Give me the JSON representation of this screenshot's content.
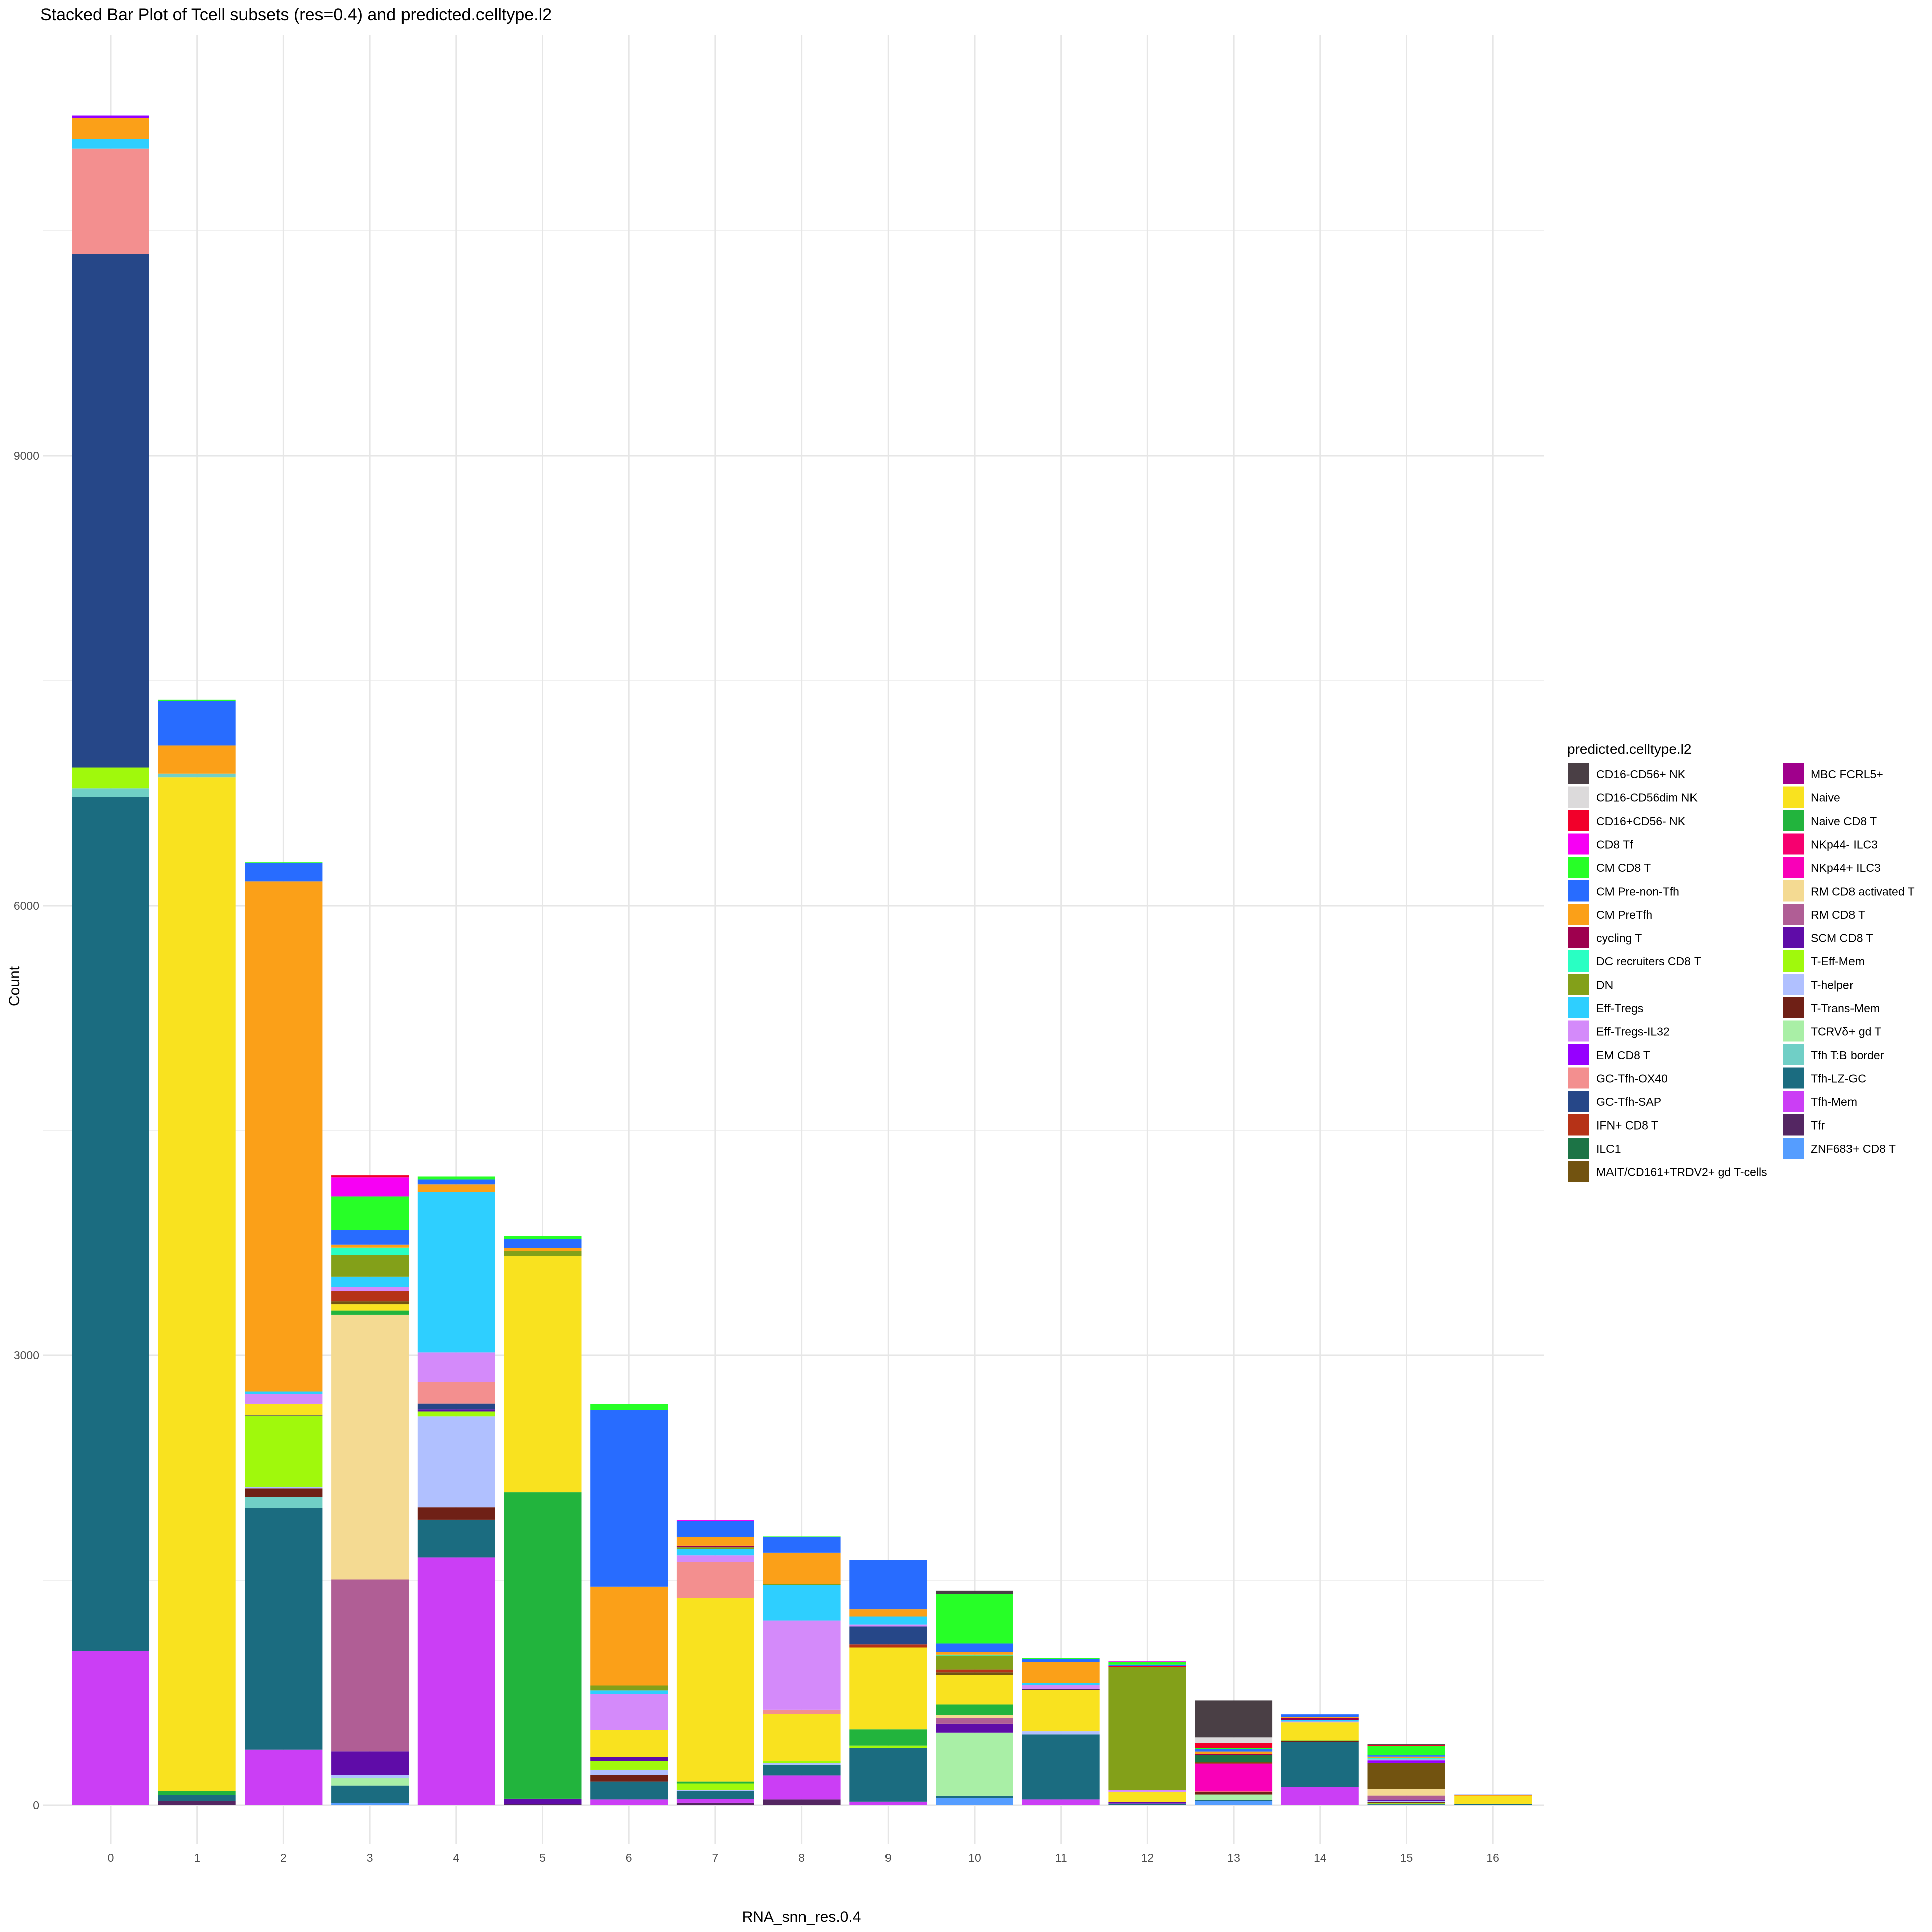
{
  "chart_data": {
    "type": "bar",
    "stacked": true,
    "title": "Stacked Bar Plot of Tcell subsets (res=0.4) and predicted.celltype.l2",
    "xlabel": "RNA_snn_res.0.4",
    "ylabel": "Count",
    "ylim": [
      -450,
      12000
    ],
    "yticks": [
      0,
      3000,
      6000,
      9000
    ],
    "grid": true,
    "legend_position": "right",
    "legend_title": "predicted.celltype.l2",
    "categories": [
      "0",
      "1",
      "2",
      "3",
      "4",
      "5",
      "6",
      "7",
      "8",
      "9",
      "10",
      "11",
      "12",
      "13",
      "14",
      "15",
      "16"
    ],
    "celltypes": [
      {
        "name": "CD16-CD56+ NK",
        "color": "#4A3F45"
      },
      {
        "name": "CD16-CD56dim NK",
        "color": "#DCDADB"
      },
      {
        "name": "CD16+CD56- NK",
        "color": "#F2002A"
      },
      {
        "name": "CD8 Tf",
        "color": "#F700F4"
      },
      {
        "name": "CM CD8 T",
        "color": "#27FF27"
      },
      {
        "name": "CM Pre-non-Tfh",
        "color": "#286CFF"
      },
      {
        "name": "CM PreTfh",
        "color": "#FBA018"
      },
      {
        "name": "cycling T",
        "color": "#9E004E"
      },
      {
        "name": "DC recruiters CD8 T",
        "color": "#29FFC3"
      },
      {
        "name": "DN",
        "color": "#83A019"
      },
      {
        "name": "Eff-Tregs",
        "color": "#2ECFFF"
      },
      {
        "name": "Eff-Tregs-IL32",
        "color": "#D48AFA"
      },
      {
        "name": "EM CD8 T",
        "color": "#9600FF"
      },
      {
        "name": "GC-Tfh-OX40",
        "color": "#F38F8F"
      },
      {
        "name": "GC-Tfh-SAP",
        "color": "#264788"
      },
      {
        "name": "IFN+ CD8 T",
        "color": "#B63217"
      },
      {
        "name": "ILC1",
        "color": "#1C7446"
      },
      {
        "name": "MAIT/CD161+TRDV2+ gd T-cells",
        "color": "#725310"
      },
      {
        "name": "MBC FCRL5+",
        "color": "#A0008C"
      },
      {
        "name": "Naive",
        "color": "#F9E21F"
      },
      {
        "name": "Naive CD8 T",
        "color": "#22B43D"
      },
      {
        "name": "NKp44- ILC3",
        "color": "#F6006F"
      },
      {
        "name": "NKp44+ ILC3",
        "color": "#F900B8"
      },
      {
        "name": "RM CD8 activated T",
        "color": "#F4DA92"
      },
      {
        "name": "RM CD8 T",
        "color": "#B05E95"
      },
      {
        "name": "SCM CD8 T",
        "color": "#5F0CA8"
      },
      {
        "name": "T-Eff-Mem",
        "color": "#A0F90C"
      },
      {
        "name": "T-helper",
        "color": "#B0C0FF"
      },
      {
        "name": "T-Trans-Mem",
        "color": "#6F2016"
      },
      {
        "name": "TCRVδ+ gd T",
        "color": "#A9EFA6"
      },
      {
        "name": "Tfh T:B border",
        "color": "#70CFC6"
      },
      {
        "name": "Tfh-LZ-GC",
        "color": "#1B6C80"
      },
      {
        "name": "Tfh-Mem",
        "color": "#CB3EF5"
      },
      {
        "name": "Tfr",
        "color": "#542662"
      },
      {
        "name": "ZNF683+ CD8 T",
        "color": "#559DFF"
      }
    ],
    "stacks_bottom_to_top": [
      [
        [
          "Tfh-Mem",
          1027
        ],
        [
          "Tfh-LZ-GC",
          5697
        ],
        [
          "Tfh T:B border",
          57
        ],
        [
          "T-Eff-Mem",
          140
        ],
        [
          "GC-Tfh-SAP",
          3428
        ],
        [
          "GC-Tfh-OX40",
          699
        ],
        [
          "Eff-Tregs",
          65
        ],
        [
          "CM PreTfh",
          140
        ],
        [
          "EM CD8 T",
          17
        ]
      ],
      [
        [
          "Tfr",
          30
        ],
        [
          "Tfh-LZ-GC",
          40
        ],
        [
          "Naive CD8 T",
          25
        ],
        [
          "Naive",
          6760
        ],
        [
          "Tfh T:B border",
          25
        ],
        [
          "CM PreTfh",
          189
        ],
        [
          "CM Pre-non-Tfh",
          296
        ],
        [
          "CM CD8 T",
          8
        ]
      ],
      [
        [
          "Tfh-Mem",
          370
        ],
        [
          "Tfh-LZ-GC",
          1611
        ],
        [
          "Tfh T:B border",
          74
        ],
        [
          "T-Trans-Mem",
          58
        ],
        [
          "T-helper",
          10
        ],
        [
          "T-Eff-Mem",
          476
        ],
        [
          "SCM CD8 T",
          5
        ],
        [
          "Naive",
          74
        ],
        [
          "Eff-Tregs-IL32",
          66
        ],
        [
          "Eff-Tregs",
          16
        ],
        [
          "CM PreTfh",
          3400
        ],
        [
          "CM Pre-non-Tfh",
          123
        ],
        [
          "CM CD8 T",
          5
        ]
      ],
      [
        [
          "ZNF683+ CD8 T",
          15
        ],
        [
          "Tfh-LZ-GC",
          117
        ],
        [
          "TCRVδ+ gd T",
          50
        ],
        [
          "T-helper",
          20
        ],
        [
          "SCM CD8 T",
          156
        ],
        [
          "RM CD8 T",
          1147
        ],
        [
          "RM CD8 activated T",
          1767
        ],
        [
          "Naive CD8 T",
          28
        ],
        [
          "Naive",
          42
        ],
        [
          "MAIT/CD161+TRDV2+ gd T-cells",
          20
        ],
        [
          "IFN+ CD8 T",
          70
        ],
        [
          "Eff-Tregs-IL32",
          22
        ],
        [
          "Eff-Tregs",
          70
        ],
        [
          "DN",
          145
        ],
        [
          "DC recruiters CD8 T",
          50
        ],
        [
          "CM PreTfh",
          20
        ],
        [
          "CM Pre-non-Tfh",
          97
        ],
        [
          "CM CD8 T",
          223
        ],
        [
          "CD8 Tf",
          128
        ],
        [
          "CD16+CD56- NK",
          14
        ]
      ],
      [
        [
          "Tfh-Mem",
          1653
        ],
        [
          "Tfh-LZ-GC",
          250
        ],
        [
          "T-Trans-Mem",
          83
        ],
        [
          "T-helper",
          607
        ],
        [
          "T-Eff-Mem",
          33
        ],
        [
          "SCM CD8 T",
          14
        ],
        [
          "GC-Tfh-SAP",
          39
        ],
        [
          "GC-Tfh-OX40",
          145
        ],
        [
          "Eff-Tregs-IL32",
          195
        ],
        [
          "Eff-Tregs",
          1071
        ],
        [
          "CM PreTfh",
          50
        ],
        [
          "CM Pre-non-Tfh",
          33
        ],
        [
          "CM CD8 T",
          20
        ]
      ],
      [
        [
          "Tfr",
          8
        ],
        [
          "SCM CD8 T",
          36
        ],
        [
          "Naive CD8 T",
          2043
        ],
        [
          "Naive",
          1575
        ],
        [
          "DN",
          36
        ],
        [
          "CM PreTfh",
          20
        ],
        [
          "CM Pre-non-Tfh",
          58
        ],
        [
          "CM CD8 T",
          20
        ]
      ],
      [
        [
          "Tfh-Mem",
          39
        ],
        [
          "Tfh-LZ-GC",
          120
        ],
        [
          "T-Trans-Mem",
          45
        ],
        [
          "T-helper",
          31
        ],
        [
          "T-Eff-Mem",
          58
        ],
        [
          "SCM CD8 T",
          28
        ],
        [
          "Naive",
          181
        ],
        [
          "Eff-Tregs-IL32",
          242
        ],
        [
          "Eff-Tregs",
          20
        ],
        [
          "DN",
          33
        ],
        [
          "CM PreTfh",
          660
        ],
        [
          "CM Pre-non-Tfh",
          1180
        ],
        [
          "CM CD8 T",
          39
        ]
      ],
      [
        [
          "Tfr",
          17
        ],
        [
          "Tfh-Mem",
          24
        ],
        [
          "Tfh-LZ-GC",
          56
        ],
        [
          "T-helper",
          6
        ],
        [
          "T-Eff-Mem",
          43
        ],
        [
          "Naive CD8 T",
          13
        ],
        [
          "Naive",
          1223
        ],
        [
          "GC-Tfh-OX40",
          240
        ],
        [
          "Eff-Tregs-IL32",
          45
        ],
        [
          "Eff-Tregs",
          43
        ],
        [
          "DN",
          11
        ],
        [
          "cycling T",
          11
        ],
        [
          "CM PreTfh",
          60
        ],
        [
          "CM Pre-non-Tfh",
          103
        ],
        [
          "CD8 Tf",
          6
        ]
      ],
      [
        [
          "Tfr",
          39
        ],
        [
          "Tfh-Mem",
          161
        ],
        [
          "Tfh-LZ-GC",
          69
        ],
        [
          "T-helper",
          11
        ],
        [
          "T-Eff-Mem",
          13
        ],
        [
          "Naive",
          315
        ],
        [
          "GC-Tfh-OX40",
          30
        ],
        [
          "Eff-Tregs-IL32",
          595
        ],
        [
          "Eff-Tregs",
          236
        ],
        [
          "DN",
          6
        ],
        [
          "CM PreTfh",
          210
        ],
        [
          "CM Pre-non-Tfh",
          105
        ],
        [
          "CM CD8 T",
          4
        ]
      ],
      [
        [
          "Tfh-Mem",
          24
        ],
        [
          "Tfh-LZ-GC",
          358
        ],
        [
          "T-Eff-Mem",
          15
        ],
        [
          "Naive CD8 T",
          109
        ],
        [
          "Naive",
          546
        ],
        [
          "IFN+ CD8 T",
          21
        ],
        [
          "GC-Tfh-SAP",
          120
        ],
        [
          "Eff-Tregs-IL32",
          13
        ],
        [
          "Eff-Tregs",
          54
        ],
        [
          "CM PreTfh",
          45
        ],
        [
          "CM Pre-non-Tfh",
          332
        ]
      ],
      [
        [
          "ZNF683+ CD8 T",
          49
        ],
        [
          "Tfh-LZ-GC",
          15
        ],
        [
          "TCRVδ+ gd T",
          420
        ],
        [
          "SCM CD8 T",
          60
        ],
        [
          "RM CD8 T",
          39
        ],
        [
          "RM CD8 activated T",
          21
        ],
        [
          "Naive CD8 T",
          69
        ],
        [
          "Naive",
          195
        ],
        [
          "MAIT/CD161+TRDV2+ gd T-cells",
          17
        ],
        [
          "IFN+ CD8 T",
          19
        ],
        [
          "DN",
          94
        ],
        [
          "DC recruiters CD8 T",
          6
        ],
        [
          "CM PreTfh",
          17
        ],
        [
          "CM Pre-non-Tfh",
          58
        ],
        [
          "CM CD8 T",
          330
        ],
        [
          "CD16-CD56+ NK",
          21
        ]
      ],
      [
        [
          "Tfh-Mem",
          39
        ],
        [
          "Tfh-LZ-GC",
          433
        ],
        [
          "T-helper",
          21
        ],
        [
          "Naive",
          274
        ],
        [
          "Tfr",
          6
        ],
        [
          "Eff-Tregs-IL32",
          26
        ],
        [
          "Eff-Tregs",
          15
        ],
        [
          "CM PreTfh",
          141
        ],
        [
          "CM Pre-non-Tfh",
          19
        ],
        [
          "CM CD8 T",
          6
        ]
      ],
      [
        [
          "Tfh-LZ-GC",
          7
        ],
        [
          "T-helper",
          4
        ],
        [
          "SCM CD8 T",
          10
        ],
        [
          "Naive",
          70
        ],
        [
          "Eff-Tregs-IL32",
          10
        ],
        [
          "DN",
          820
        ],
        [
          "CD16+CD56- NK",
          6
        ],
        [
          "CM Pre-non-Tfh",
          10
        ],
        [
          "CM CD8 T",
          20
        ],
        [
          "CD8 Tf",
          3
        ]
      ],
      [
        [
          "ZNF683+ CD8 T",
          27
        ],
        [
          "Tfh-LZ-GC",
          8
        ],
        [
          "TCRVδ+ gd T",
          37
        ],
        [
          "T-Trans-Mem",
          16
        ],
        [
          "Naive",
          4
        ],
        [
          "NKp44+ ILC3",
          181
        ],
        [
          "NKp44- ILC3",
          4
        ],
        [
          "MAIT/CD161+TRDV2+ gd T-cells",
          9
        ],
        [
          "ILC1",
          47
        ],
        [
          "cycling T",
          7
        ],
        [
          "CM PreTfh",
          17
        ],
        [
          "CM Pre-non-Tfh",
          17
        ],
        [
          "CM CD8 T",
          7
        ],
        [
          "CD16+CD56- NK",
          34
        ],
        [
          "CD16-CD56dim NK",
          37
        ],
        [
          "CD16-CD56+ NK",
          248
        ]
      ],
      [
        [
          "Tfh-Mem",
          122
        ],
        [
          "Tfh-LZ-GC",
          300
        ],
        [
          "T-Trans-Mem",
          5
        ],
        [
          "Naive CD8 T",
          4
        ],
        [
          "Naive",
          122
        ],
        [
          "Eff-Tregs-IL32",
          6
        ],
        [
          "Eff-Tregs",
          9
        ],
        [
          "cycling T",
          16
        ],
        [
          "CM PreTfh",
          4
        ],
        [
          "CM Pre-non-Tfh",
          19
        ],
        [
          "T-helper",
          3
        ]
      ],
      [
        [
          "ZNF683+ CD8 T",
          4
        ],
        [
          "Tfh-LZ-GC",
          3
        ],
        [
          "T-Eff-Mem",
          6
        ],
        [
          "T-Trans-Mem",
          7
        ],
        [
          "T-helper",
          8
        ],
        [
          "SCM CD8 T",
          10
        ],
        [
          "RM CD8 T",
          27
        ],
        [
          "RM CD8 activated T",
          44
        ],
        [
          "MAIT/CD161+TRDV2+ gd T-cells",
          173
        ],
        [
          "EM CD8 T",
          16
        ],
        [
          "Eff-Tregs-IL32",
          6
        ],
        [
          "DC recruiters CD8 T",
          11
        ],
        [
          "CM PreTfh",
          8
        ],
        [
          "CM Pre-non-Tfh",
          9
        ],
        [
          "CM CD8 T",
          63
        ],
        [
          "CD16+CD56- NK",
          8
        ],
        [
          "CD16-CD56+ NK",
          6
        ]
      ],
      [
        [
          "Tfh-LZ-GC",
          7
        ],
        [
          "Naive CD8 T",
          2
        ],
        [
          "Naive",
          54
        ],
        [
          "CM PreTfh",
          7
        ],
        [
          "T-helper",
          3
        ]
      ]
    ]
  }
}
